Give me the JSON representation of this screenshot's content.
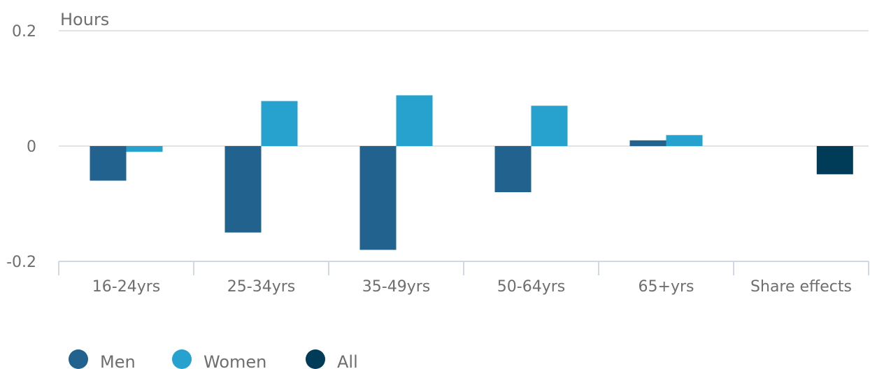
{
  "chart_data": {
    "type": "bar",
    "ylabel": "Hours",
    "ylim": [
      -0.2,
      0.2
    ],
    "yticks": [
      "0.2",
      "0",
      "-0.2"
    ],
    "categories": [
      "16-24yrs",
      "25-34yrs",
      "35-49yrs",
      "50-64yrs",
      "65+yrs",
      "Share effects"
    ],
    "series": [
      {
        "name": "Men",
        "color": "#21628f",
        "values": [
          -0.06,
          -0.15,
          -0.18,
          -0.08,
          0.01,
          null
        ]
      },
      {
        "name": "Women",
        "color": "#27a1cd",
        "values": [
          -0.01,
          0.078,
          0.088,
          0.07,
          0.019,
          null
        ]
      },
      {
        "name": "All",
        "color": "#003b57",
        "values": [
          null,
          null,
          null,
          null,
          null,
          -0.049
        ]
      }
    ],
    "grid": true,
    "legend": "bottom-left"
  }
}
